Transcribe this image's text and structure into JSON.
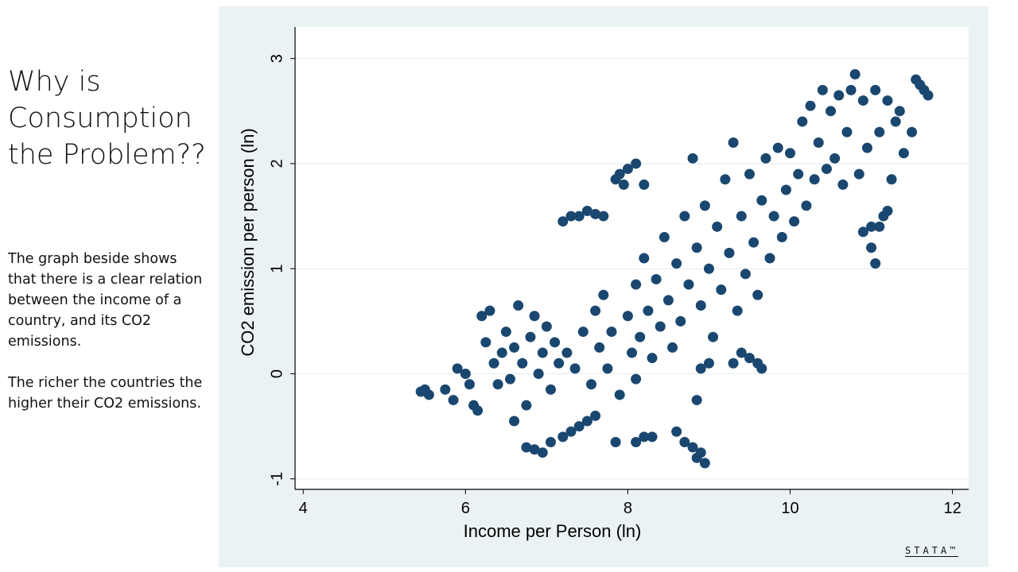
{
  "slide": {
    "title": "Why is Consumption the Problem??",
    "paragraphs": [
      "The graph  beside shows that there is a clear relation between the income of a country, and its CO2 emissions.",
      "The richer the countries the higher their CO2 emissions."
    ],
    "logo_text": "STATA™"
  },
  "chart_data": {
    "type": "scatter",
    "xlabel": "Income per Person (ln)",
    "ylabel": "CO2 emission per person (ln)",
    "xlim": [
      3.9,
      12.2
    ],
    "ylim": [
      -1.1,
      3.3
    ],
    "xticks": [
      4,
      6,
      8,
      10,
      12
    ],
    "yticks": [
      -1,
      0,
      1,
      2,
      3
    ],
    "grid": true,
    "marker_color": "#1a476f",
    "background_color": "#eaf2f3",
    "plot_background": "#ffffff",
    "points": [
      [
        5.45,
        -0.17
      ],
      [
        5.5,
        -0.15
      ],
      [
        5.55,
        -0.2
      ],
      [
        5.75,
        -0.15
      ],
      [
        5.85,
        -0.25
      ],
      [
        5.9,
        0.05
      ],
      [
        6.0,
        0.0
      ],
      [
        6.05,
        -0.1
      ],
      [
        6.1,
        -0.3
      ],
      [
        6.15,
        -0.35
      ],
      [
        6.2,
        0.55
      ],
      [
        6.3,
        0.6
      ],
      [
        6.25,
        0.3
      ],
      [
        6.35,
        0.1
      ],
      [
        6.4,
        -0.1
      ],
      [
        6.45,
        0.2
      ],
      [
        6.5,
        0.4
      ],
      [
        6.55,
        -0.05
      ],
      [
        6.6,
        0.25
      ],
      [
        6.65,
        0.65
      ],
      [
        6.7,
        0.1
      ],
      [
        6.75,
        -0.3
      ],
      [
        6.8,
        0.35
      ],
      [
        6.85,
        0.55
      ],
      [
        6.9,
        0.0
      ],
      [
        6.95,
        0.2
      ],
      [
        7.0,
        0.45
      ],
      [
        7.05,
        -0.15
      ],
      [
        7.1,
        0.3
      ],
      [
        7.15,
        0.1
      ],
      [
        6.6,
        -0.45
      ],
      [
        6.75,
        -0.7
      ],
      [
        6.85,
        -0.72
      ],
      [
        6.95,
        -0.75
      ],
      [
        7.05,
        -0.65
      ],
      [
        7.2,
        -0.6
      ],
      [
        7.3,
        -0.55
      ],
      [
        7.4,
        -0.5
      ],
      [
        7.5,
        -0.45
      ],
      [
        7.6,
        -0.4
      ],
      [
        7.2,
        1.45
      ],
      [
        7.3,
        1.5
      ],
      [
        7.4,
        1.5
      ],
      [
        7.5,
        1.55
      ],
      [
        7.6,
        1.52
      ],
      [
        7.7,
        1.5
      ],
      [
        7.25,
        0.2
      ],
      [
        7.35,
        0.05
      ],
      [
        7.45,
        0.4
      ],
      [
        7.55,
        -0.1
      ],
      [
        7.6,
        0.6
      ],
      [
        7.65,
        0.25
      ],
      [
        7.7,
        0.75
      ],
      [
        7.75,
        0.05
      ],
      [
        7.8,
        0.4
      ],
      [
        7.85,
        1.85
      ],
      [
        7.9,
        1.9
      ],
      [
        7.95,
        1.8
      ],
      [
        8.0,
        1.95
      ],
      [
        8.1,
        2.0
      ],
      [
        8.2,
        1.8
      ],
      [
        8.0,
        0.55
      ],
      [
        8.05,
        0.2
      ],
      [
        8.1,
        0.85
      ],
      [
        8.15,
        0.35
      ],
      [
        8.2,
        1.1
      ],
      [
        8.25,
        0.6
      ],
      [
        8.3,
        0.15
      ],
      [
        8.35,
        0.9
      ],
      [
        8.4,
        0.45
      ],
      [
        8.45,
        1.3
      ],
      [
        8.5,
        0.7
      ],
      [
        8.55,
        0.25
      ],
      [
        8.6,
        1.05
      ],
      [
        8.65,
        0.5
      ],
      [
        8.7,
        1.5
      ],
      [
        8.75,
        0.85
      ],
      [
        8.8,
        2.05
      ],
      [
        8.85,
        1.2
      ],
      [
        8.9,
        0.65
      ],
      [
        8.95,
        1.6
      ],
      [
        9.0,
        1.0
      ],
      [
        9.05,
        0.35
      ],
      [
        9.1,
        1.4
      ],
      [
        9.15,
        0.8
      ],
      [
        9.2,
        1.85
      ],
      [
        9.25,
        1.15
      ],
      [
        9.3,
        2.2
      ],
      [
        9.35,
        0.6
      ],
      [
        9.4,
        1.5
      ],
      [
        9.45,
        0.95
      ],
      [
        9.5,
        1.9
      ],
      [
        9.55,
        1.25
      ],
      [
        9.6,
        0.75
      ],
      [
        9.65,
        1.65
      ],
      [
        9.7,
        2.05
      ],
      [
        9.75,
        1.1
      ],
      [
        9.8,
        1.5
      ],
      [
        9.85,
        2.15
      ],
      [
        9.9,
        1.3
      ],
      [
        9.95,
        1.75
      ],
      [
        10.0,
        2.1
      ],
      [
        10.05,
        1.45
      ],
      [
        10.1,
        1.9
      ],
      [
        10.15,
        2.4
      ],
      [
        10.2,
        1.6
      ],
      [
        10.25,
        2.55
      ],
      [
        10.3,
        1.85
      ],
      [
        10.35,
        2.2
      ],
      [
        10.4,
        2.7
      ],
      [
        10.45,
        1.95
      ],
      [
        10.5,
        2.5
      ],
      [
        10.55,
        2.05
      ],
      [
        10.6,
        2.65
      ],
      [
        10.65,
        1.8
      ],
      [
        10.7,
        2.3
      ],
      [
        10.75,
        2.7
      ],
      [
        10.8,
        2.85
      ],
      [
        10.85,
        1.9
      ],
      [
        10.9,
        2.6
      ],
      [
        10.95,
        2.15
      ],
      [
        11.0,
        1.4
      ],
      [
        11.05,
        2.7
      ],
      [
        11.1,
        2.3
      ],
      [
        11.15,
        1.5
      ],
      [
        11.2,
        2.6
      ],
      [
        11.25,
        1.85
      ],
      [
        11.3,
        2.4
      ],
      [
        11.35,
        2.5
      ],
      [
        11.4,
        2.1
      ],
      [
        11.5,
        2.3
      ],
      [
        11.55,
        2.8
      ],
      [
        11.6,
        2.75
      ],
      [
        11.65,
        2.7
      ],
      [
        11.7,
        2.65
      ],
      [
        11.05,
        1.05
      ],
      [
        11.0,
        1.2
      ],
      [
        11.1,
        1.4
      ],
      [
        11.2,
        1.55
      ],
      [
        10.9,
        1.35
      ],
      [
        7.85,
        -0.65
      ],
      [
        8.1,
        -0.65
      ],
      [
        8.2,
        -0.6
      ],
      [
        8.3,
        -0.6
      ],
      [
        8.6,
        -0.55
      ],
      [
        8.7,
        -0.65
      ],
      [
        8.8,
        -0.7
      ],
      [
        8.85,
        -0.8
      ],
      [
        8.9,
        -0.75
      ],
      [
        8.95,
        -0.85
      ],
      [
        8.85,
        -0.25
      ],
      [
        8.9,
        0.05
      ],
      [
        9.0,
        0.1
      ],
      [
        9.3,
        0.1
      ],
      [
        9.4,
        0.2
      ],
      [
        9.5,
        0.15
      ],
      [
        9.6,
        0.1
      ],
      [
        9.65,
        0.05
      ],
      [
        7.9,
        -0.2
      ],
      [
        8.1,
        -0.05
      ]
    ]
  }
}
